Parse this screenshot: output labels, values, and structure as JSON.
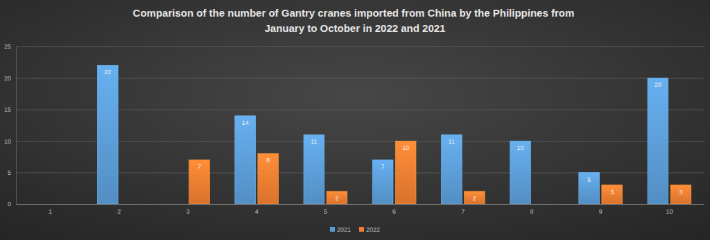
{
  "chart_data": {
    "type": "bar",
    "title": "Comparison of the number of Gantry cranes imported from China by the Philippines from January to October in 2022 and 2021",
    "categories": [
      "1",
      "2",
      "3",
      "4",
      "5",
      "6",
      "7",
      "8",
      "9",
      "10"
    ],
    "series": [
      {
        "name": "2021",
        "color": "#5b9bd5",
        "values": [
          null,
          22,
          null,
          14,
          11,
          7,
          11,
          10,
          5,
          20
        ]
      },
      {
        "name": "2022",
        "color": "#ed7d31",
        "values": [
          null,
          null,
          7,
          8,
          2,
          10,
          2,
          null,
          3,
          3
        ]
      }
    ],
    "ylim": [
      0,
      25
    ],
    "yticks": [
      0,
      5,
      10,
      15,
      20,
      25
    ],
    "grid": true,
    "legend": "bottom",
    "data_labels": true
  }
}
